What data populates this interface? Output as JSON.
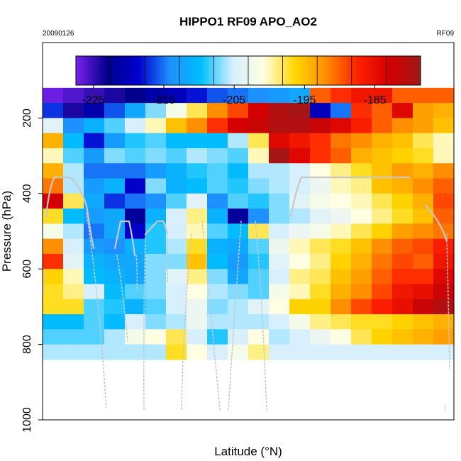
{
  "chart_data": {
    "type": "heatmap",
    "title": "HIPPO1 RF09 APO_AO2",
    "date_label": "20090126",
    "flight_label": "RF09",
    "xlabel": "Latitude (°N)",
    "ylabel": "Pressure (hPa)",
    "ylim": [
      1000,
      0
    ],
    "y_ticks": [
      200,
      400,
      600,
      800,
      1000
    ],
    "colorbar": {
      "min": -227.5,
      "max": -178.5,
      "ticks": [
        -225,
        -215,
        -205,
        -195,
        -185
      ],
      "tick_labels": [
        "-225",
        "-215",
        "-205",
        "-195",
        "-185"
      ]
    },
    "colors": {
      "stops": [
        "#7a22ee",
        "#00008b",
        "#0000d0",
        "#1e90ff",
        "#00bfff",
        "#d6efff",
        "#ffffe0",
        "#ffd700",
        "#ff8c00",
        "#ff2000",
        "#d40000",
        "#a01818"
      ],
      "track": "#c8c8c8"
    },
    "grid": {
      "pressure_top": 120,
      "pressure_step": 40,
      "n_cols": 20,
      "values": [
        [
          -227,
          -226,
          -225,
          -224,
          -223,
          -221,
          -220,
          -218,
          -216,
          -215,
          -214,
          -213,
          -212,
          -190,
          -188,
          -186,
          -186,
          -190,
          -190,
          -190
        ],
        [
          -217,
          -224,
          -221,
          -216,
          -212,
          -207,
          -202,
          -198,
          -192,
          -189,
          -183,
          -180,
          -179,
          -220,
          -215,
          -188,
          -190,
          -184,
          -193,
          -194
        ],
        [
          -204,
          -214,
          -211,
          -208,
          -205,
          -200,
          -195,
          -192,
          -188,
          -183,
          -182,
          -180,
          -180,
          -182,
          -184,
          -187,
          -190,
          -192,
          -193,
          -195
        ],
        [
          -194,
          -210,
          -218,
          -213,
          -209,
          -208,
          -210,
          -210,
          -210,
          -206,
          -198,
          -184,
          -186,
          -188,
          -191,
          -192,
          -194,
          -195,
          -198,
          -200
        ],
        [
          -200,
          -208,
          -213,
          -207,
          -208,
          -207,
          -208,
          -206,
          -207,
          -208,
          -200,
          -179,
          -184,
          -188,
          -190,
          -194,
          -195,
          -196,
          -197,
          -200
        ],
        [
          -194,
          -206,
          -215,
          -215,
          -215,
          -213,
          -211,
          -209,
          -208,
          -210,
          -206,
          -206,
          -205,
          -201,
          -199,
          -197,
          -195,
          -193,
          -194,
          -192
        ],
        [
          -191,
          -206,
          -213,
          -211,
          -219,
          -207,
          -211,
          -210,
          -208,
          -209,
          -207,
          -206,
          -205,
          -203,
          -200,
          -199,
          -195,
          -194,
          -192,
          -190
        ],
        [
          -183,
          -198,
          -212,
          -217,
          -215,
          -214,
          -208,
          -204,
          -214,
          -208,
          -209,
          -207,
          -204,
          -202,
          -201,
          -200,
          -198,
          -196,
          -194,
          -189
        ],
        [
          -197,
          -210,
          -213,
          -212,
          -222,
          -211,
          -205,
          -199,
          -211,
          -222,
          -214,
          -207,
          -206,
          -204,
          -203,
          -201,
          -199,
          -197,
          -195,
          -190
        ],
        [
          -202,
          -206,
          -215,
          -212,
          -219,
          -209,
          -205,
          -200,
          -208,
          -210,
          -198,
          -205,
          -203,
          -202,
          -200,
          -198,
          -196,
          -193,
          -192,
          -191
        ],
        [
          -192,
          -205,
          -213,
          -214,
          -211,
          -209,
          -206,
          -197,
          -211,
          -212,
          -208,
          -203,
          -200,
          -198,
          -197,
          -195,
          -192,
          -190,
          -189,
          -187
        ],
        [
          -188,
          -204,
          -211,
          -212,
          -212,
          -207,
          -207,
          -195,
          -210,
          -213,
          -209,
          -204,
          -201,
          -199,
          -196,
          -194,
          -191,
          -189,
          -190,
          -186
        ],
        [
          -196,
          -200,
          -210,
          -211,
          -212,
          -207,
          -204,
          -199,
          -207,
          -212,
          -208,
          -205,
          -199,
          -198,
          -195,
          -193,
          -190,
          -188,
          -188,
          -184
        ],
        [
          -197,
          -199,
          -205,
          -210,
          -208,
          -207,
          -205,
          -201,
          -206,
          -207,
          -208,
          -202,
          -200,
          -197,
          -194,
          -192,
          -189,
          -186,
          -185,
          -182
        ],
        [
          -197,
          -197,
          -208,
          -209,
          -211,
          -208,
          -205,
          -203,
          -207,
          -206,
          -204,
          -201,
          -196,
          -196,
          -192,
          -189,
          -187,
          -185,
          -182,
          -180
        ],
        [
          -210,
          -210,
          -208,
          -210,
          -205,
          -207,
          -206,
          -203,
          -206,
          -206,
          -206,
          -205,
          -202,
          -199,
          -198,
          -197,
          -197,
          -196,
          -195,
          -194
        ],
        [
          -208,
          -208,
          -208,
          -206,
          -202,
          -201,
          -198,
          -205,
          -209,
          -205,
          -201,
          -206,
          -205,
          -203,
          -201,
          -198,
          -196,
          -195,
          -194,
          -193
        ],
        [
          -206,
          -206,
          -206,
          -206,
          -206,
          -206,
          -197,
          -201,
          -205,
          -202,
          -199,
          -205,
          -205,
          -205,
          -205,
          -205,
          -205,
          -205,
          -205,
          -205
        ]
      ]
    }
  }
}
